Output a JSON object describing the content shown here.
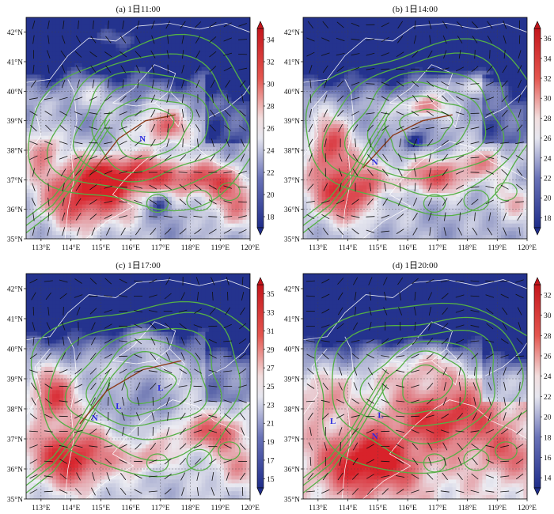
{
  "figure": {
    "panels": [
      {
        "id": "a",
        "title": "(a) 1日11:00",
        "colorbar": {
          "ticks": [
            "34",
            "32",
            "30",
            "28",
            "26",
            "24",
            "22",
            "20",
            "18"
          ],
          "min": 17,
          "max": 35
        },
        "markers": [
          {
            "text": "N",
            "lon": 116.4,
            "lat": 38.3
          }
        ],
        "field": {
          "base": 22,
          "blobs": [
            {
              "lon": 114.5,
              "lat": 36.4,
              "rx": 1.6,
              "ry": 1.1,
              "amp": 12
            },
            {
              "lon": 116.0,
              "lat": 37.2,
              "rx": 1.8,
              "ry": 0.7,
              "amp": 10
            },
            {
              "lon": 117.1,
              "lat": 38.8,
              "rx": 0.9,
              "ry": 0.6,
              "amp": 9
            },
            {
              "lon": 118.6,
              "lat": 37.0,
              "rx": 1.4,
              "ry": 0.6,
              "amp": 9
            },
            {
              "lon": 113.0,
              "lat": 38.0,
              "rx": 0.6,
              "ry": 0.7,
              "amp": 8
            },
            {
              "lon": 119.4,
              "lat": 36.0,
              "rx": 0.8,
              "ry": 0.8,
              "amp": 7
            },
            {
              "lon": 115.6,
              "lat": 41.8,
              "rx": 1.5,
              "ry": 0.5,
              "amp": 6
            },
            {
              "lon": 114.5,
              "lat": 40.0,
              "rx": 1.0,
              "ry": 0.5,
              "amp": 4
            },
            {
              "lon": 117.0,
              "lat": 36.2,
              "rx": 0.4,
              "ry": 0.4,
              "amp": -6
            }
          ],
          "north_cool": {
            "lat_start": 39.6,
            "lat_end": 41.5,
            "amp": 10
          }
        },
        "ridge": [
          [
            114.6,
            37.1
          ],
          [
            115.6,
            38.4
          ],
          [
            116.5,
            39.0
          ],
          [
            117.5,
            39.2
          ]
        ],
        "wind": {
          "dir": 50,
          "spin": 0.35
        }
      },
      {
        "id": "b",
        "title": "(b) 1日14:00",
        "colorbar": {
          "ticks": [
            "36",
            "34",
            "32",
            "30",
            "28",
            "26",
            "24",
            "22",
            "20",
            "18"
          ],
          "min": 17,
          "max": 37
        },
        "markers": [
          {
            "text": "N",
            "lon": 114.9,
            "lat": 37.5
          },
          {
            "text": "L",
            "lon": 116.4,
            "lat": 38.2
          }
        ],
        "field": {
          "base": 23,
          "blobs": [
            {
              "lon": 114.0,
              "lat": 36.6,
              "rx": 1.4,
              "ry": 1.0,
              "amp": 13
            },
            {
              "lon": 113.4,
              "lat": 38.2,
              "rx": 0.7,
              "ry": 0.9,
              "amp": 11
            },
            {
              "lon": 117.0,
              "lat": 37.1,
              "rx": 1.2,
              "ry": 0.6,
              "amp": 10
            },
            {
              "lon": 116.5,
              "lat": 39.5,
              "rx": 0.8,
              "ry": 0.4,
              "amp": 8
            },
            {
              "lon": 118.6,
              "lat": 37.6,
              "rx": 1.0,
              "ry": 0.5,
              "amp": 6
            },
            {
              "lon": 118.0,
              "lat": 40.2,
              "rx": 1.4,
              "ry": 0.4,
              "amp": 7
            },
            {
              "lon": 119.5,
              "lat": 36.2,
              "rx": 0.8,
              "ry": 0.7,
              "amp": 5
            },
            {
              "lon": 116.2,
              "lat": 38.3,
              "rx": 0.4,
              "ry": 0.3,
              "amp": -8
            },
            {
              "lon": 115.3,
              "lat": 36.3,
              "rx": 0.4,
              "ry": 0.4,
              "amp": -6
            }
          ],
          "north_cool": {
            "lat_start": 39.5,
            "lat_end": 41.3,
            "amp": 11
          }
        },
        "ridge": [
          [
            114.5,
            37.4
          ],
          [
            115.5,
            38.5
          ],
          [
            116.5,
            39.0
          ],
          [
            117.5,
            39.2
          ]
        ],
        "wind": {
          "dir": 40,
          "spin": 0.5
        }
      },
      {
        "id": "c",
        "title": "(c) 1日17:00",
        "colorbar": {
          "ticks": [
            "35",
            "33",
            "31",
            "29",
            "27",
            "25",
            "23",
            "21",
            "19",
            "17",
            "15"
          ],
          "min": 14,
          "max": 36
        },
        "markers": [
          {
            "text": "N",
            "lon": 114.8,
            "lat": 37.6
          },
          {
            "text": "L",
            "lon": 115.6,
            "lat": 38.0
          },
          {
            "text": "L",
            "lon": 117.0,
            "lat": 38.6
          }
        ],
        "field": {
          "base": 22,
          "blobs": [
            {
              "lon": 114.0,
              "lat": 36.4,
              "rx": 1.4,
              "ry": 1.0,
              "amp": 14
            },
            {
              "lon": 113.4,
              "lat": 38.4,
              "rx": 0.7,
              "ry": 0.8,
              "amp": 12
            },
            {
              "lon": 118.7,
              "lat": 37.2,
              "rx": 1.3,
              "ry": 0.6,
              "amp": 10
            },
            {
              "lon": 116.4,
              "lat": 40.3,
              "rx": 0.9,
              "ry": 0.5,
              "amp": 6
            },
            {
              "lon": 119.5,
              "lat": 36.0,
              "rx": 0.8,
              "ry": 0.7,
              "amp": 6
            },
            {
              "lon": 116.5,
              "lat": 36.4,
              "rx": 0.8,
              "ry": 0.5,
              "amp": 6
            },
            {
              "lon": 116.3,
              "lat": 38.2,
              "rx": 0.9,
              "ry": 0.7,
              "amp": -4
            }
          ],
          "north_cool": {
            "lat_start": 39.4,
            "lat_end": 41.0,
            "amp": 12
          }
        },
        "ridge": [
          [
            114.3,
            37.5
          ],
          [
            115.2,
            38.6
          ],
          [
            116.4,
            39.3
          ],
          [
            117.7,
            39.6
          ]
        ],
        "wind": {
          "dir": 20,
          "spin": 0.7
        }
      },
      {
        "id": "d",
        "title": "(d) 1日20:00",
        "colorbar": {
          "ticks": [
            "32",
            "30",
            "28",
            "26",
            "24",
            "22",
            "20",
            "18",
            "16",
            "14"
          ],
          "min": 13,
          "max": 33
        },
        "markers": [
          {
            "text": "L",
            "lon": 113.5,
            "lat": 37.5
          },
          {
            "text": "L",
            "lon": 115.1,
            "lat": 37.7
          },
          {
            "text": "N",
            "lon": 114.9,
            "lat": 37.0
          }
        ],
        "field": {
          "base": 23,
          "blobs": [
            {
              "lon": 114.7,
              "lat": 36.2,
              "rx": 1.6,
              "ry": 1.0,
              "amp": 12
            },
            {
              "lon": 117.3,
              "lat": 37.7,
              "rx": 1.8,
              "ry": 1.0,
              "amp": 9
            },
            {
              "lon": 116.5,
              "lat": 39.6,
              "rx": 1.2,
              "ry": 0.5,
              "amp": 6
            },
            {
              "lon": 119.3,
              "lat": 36.5,
              "rx": 1.0,
              "ry": 0.8,
              "amp": 5
            },
            {
              "lon": 113.2,
              "lat": 38.2,
              "rx": 0.6,
              "ry": 0.6,
              "amp": 4
            }
          ],
          "north_cool": {
            "lat_start": 39.0,
            "lat_end": 40.6,
            "amp": 13
          }
        },
        "ridge": [],
        "wind": {
          "dir": 200,
          "spin": 0.6
        }
      }
    ],
    "axes": {
      "lon_ticks": [
        "113°E",
        "114°E",
        "115°E",
        "116°E",
        "117°E",
        "118°E",
        "119°E",
        "120°E"
      ],
      "lat_ticks": [
        "42°N",
        "41°N",
        "40°N",
        "39°N",
        "38°N",
        "37°N",
        "36°N",
        "35°N"
      ],
      "lon_range": [
        112.5,
        120
      ],
      "lat_range": [
        35,
        42.5
      ]
    },
    "colors": {
      "high": "#d7191c",
      "low": "#2c3e8f",
      "mid": "#eeeef3",
      "contour": "#55b046",
      "ridge": "#8b3a1a",
      "marker": "#2a2ae0",
      "border": "#ffffff"
    }
  }
}
